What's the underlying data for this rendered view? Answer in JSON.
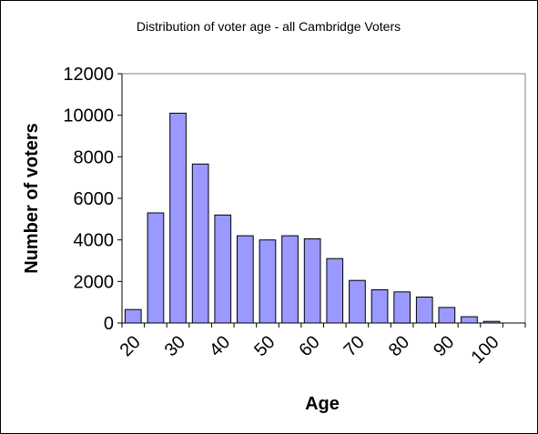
{
  "chart_data": {
    "type": "bar",
    "title": "Distribution of voter age - all Cambridge Voters",
    "xlabel": "Age",
    "ylabel": "Number of voters",
    "ylim": [
      0,
      12000
    ],
    "yticks": [
      "0",
      "2000",
      "4000",
      "6000",
      "8000",
      "10000",
      "12000"
    ],
    "xticks": [
      "20",
      "30",
      "40",
      "50",
      "60",
      "70",
      "80",
      "90",
      "100"
    ],
    "categories": [
      "20",
      "25",
      "30",
      "35",
      "40",
      "45",
      "50",
      "55",
      "60",
      "65",
      "70",
      "75",
      "80",
      "85",
      "90",
      "95",
      "100",
      "105"
    ],
    "values": [
      650,
      5300,
      10100,
      7650,
      5200,
      4200,
      4000,
      4200,
      4050,
      3100,
      2050,
      1600,
      1500,
      1250,
      750,
      300,
      80,
      0
    ],
    "bar_color": "#9999ff",
    "grid": false,
    "legend": "none"
  }
}
